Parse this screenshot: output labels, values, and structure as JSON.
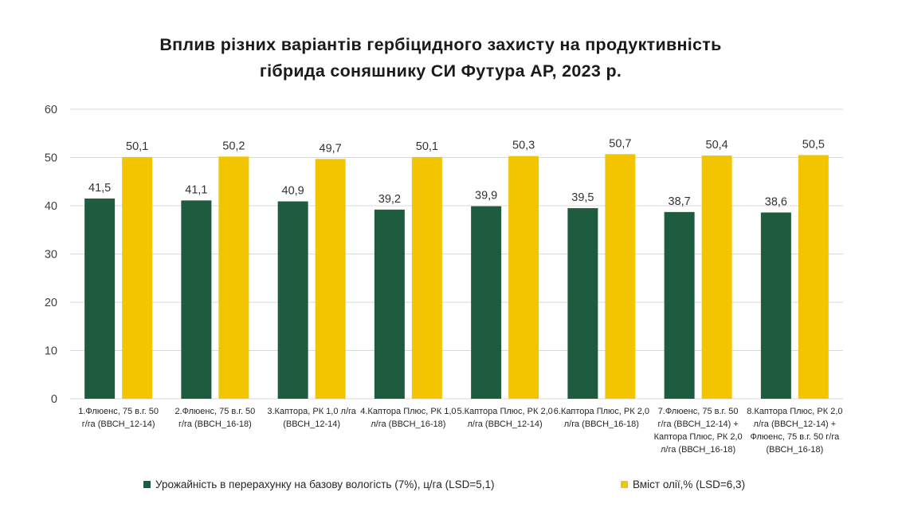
{
  "title": {
    "line1": "Вплив різних варіантів гербіцидного захисту на продуктивність",
    "line2": "гібрида соняшнику СИ Футура АР, 2023 р."
  },
  "colors": {
    "yield": "#1e5c40",
    "oil": "#f2c500",
    "grid": "#d9d9d9"
  },
  "chart_data": {
    "type": "bar",
    "title": "Вплив різних варіантів гербіцидного захисту на продуктивність гібрида соняшнику СИ Футура АР, 2023 р.",
    "categories": [
      [
        "1.Флюенс, 75 в.г. 50",
        "г/га (ВВСН_12-14)"
      ],
      [
        "2.Флюенс, 75 в.г. 50",
        "г/га (ВВСН_16-18)"
      ],
      [
        "3.Каптора, РК 1,0 л/га",
        "(ВВСН_12-14)"
      ],
      [
        "4.Каптора Плюс, РК 1,0",
        "л/га (ВВСН_16-18)"
      ],
      [
        "5.Каптора Плюс, РК 2,0",
        "л/га (ВВСН_12-14)"
      ],
      [
        "6.Каптора Плюс, РК 2,0",
        "л/га (ВВСН_16-18)"
      ],
      [
        "7.Флюенс, 75 в.г. 50",
        "г/га (ВВСН_12-14) +",
        "Каптора Плюс, РК 2,0",
        "л/га (ВВСН_16-18)"
      ],
      [
        "8.Каптора Плюс, РК 2,0",
        "л/га (ВВСН_12-14) +",
        "Флюенс, 75 в.г. 50 г/га",
        "(ВВСН_16-18)"
      ]
    ],
    "series": [
      {
        "name": "Урожайність в перерахунку на базову вологість (7%), ц/га (LSD=5,1)",
        "values": [
          41.5,
          41.1,
          40.9,
          39.2,
          39.9,
          39.5,
          38.7,
          38.6
        ],
        "labels": [
          "41,5",
          "41,1",
          "40,9",
          "39,2",
          "39,9",
          "39,5",
          "38,7",
          "38,6"
        ]
      },
      {
        "name": "Вміст олії,% (LSD=6,3)",
        "values": [
          50.1,
          50.2,
          49.7,
          50.1,
          50.3,
          50.7,
          50.4,
          50.5
        ],
        "labels": [
          "50,1",
          "50,2",
          "49,7",
          "50,1",
          "50,3",
          "50,7",
          "50,4",
          "50,5"
        ]
      }
    ],
    "ylim": [
      0,
      60
    ],
    "yticks": [
      0,
      10,
      20,
      30,
      40,
      50,
      60
    ],
    "grid": true,
    "legend_position": "bottom"
  }
}
